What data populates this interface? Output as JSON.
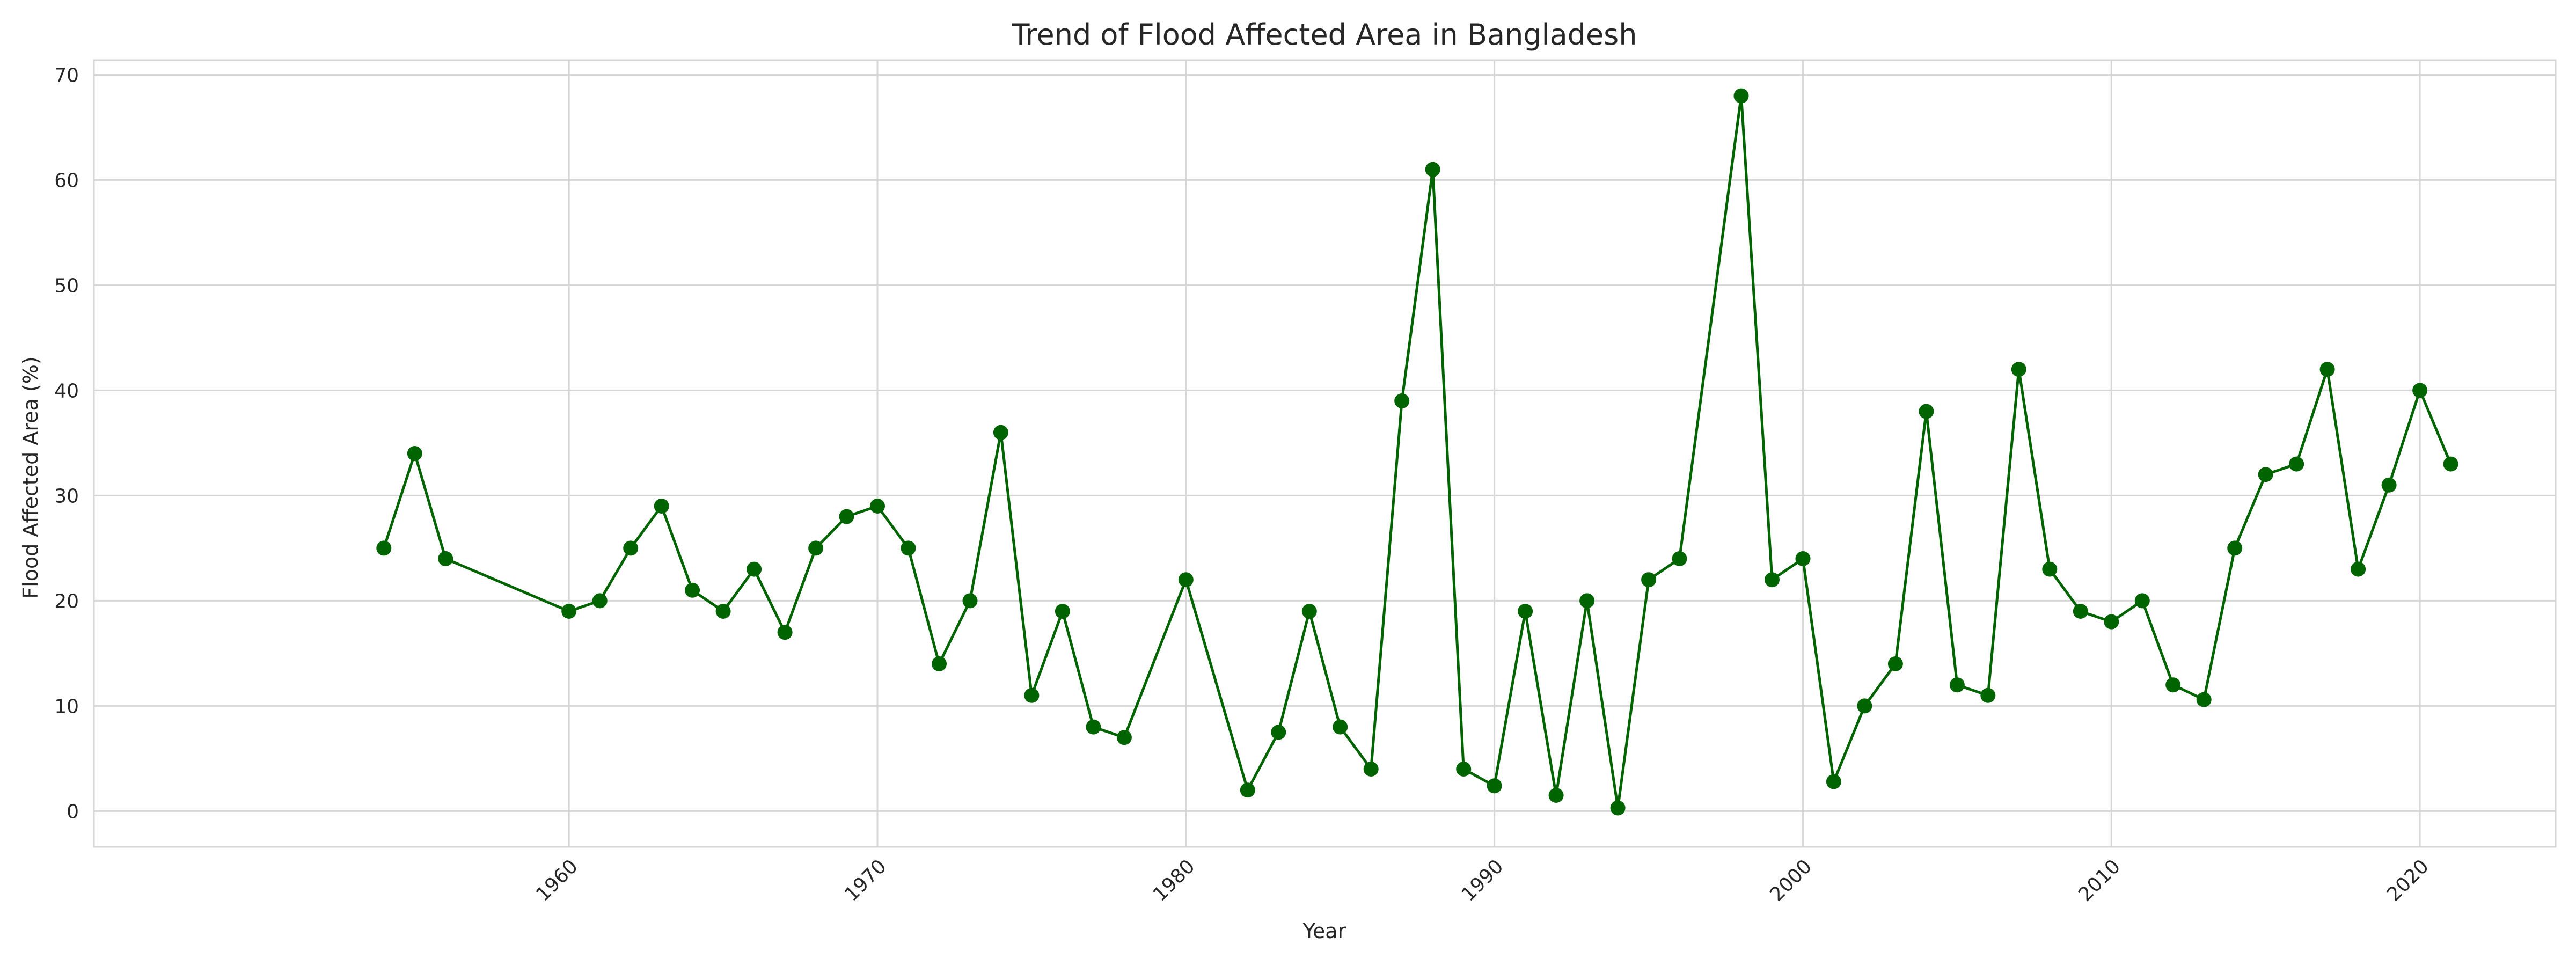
{
  "chart_data": {
    "type": "line",
    "title": "Trend of Flood Affected Area in Bangladesh",
    "xlabel": "Year",
    "ylabel": "Flood Affected Area (%)",
    "xlim": [
      1944.6,
      2024.4
    ],
    "ylim": [
      -3.4,
      71.4
    ],
    "xticks": [
      1960,
      1970,
      1980,
      1990,
      2000,
      2010,
      2020
    ],
    "yticks": [
      0,
      10,
      20,
      30,
      40,
      50,
      60,
      70
    ],
    "x_tick_rotation": 45,
    "grid": true,
    "legend": false,
    "color": "#006400",
    "marker": "circle",
    "series": [
      {
        "x": [
          1954,
          1955,
          1956,
          1960,
          1961,
          1962,
          1963,
          1964,
          1965,
          1966,
          1967,
          1968,
          1969,
          1970,
          1971,
          1972,
          1973,
          1974,
          1975,
          1976,
          1977,
          1978,
          1980,
          1982,
          1983,
          1984,
          1985,
          1986,
          1987,
          1988,
          1989,
          1990,
          1991,
          1992,
          1993,
          1994,
          1995,
          1996,
          1998,
          1999,
          2000,
          2001,
          2002,
          2003,
          2004,
          2005,
          2006,
          2007,
          2008,
          2009,
          2010,
          2011,
          2012,
          2013,
          2014,
          2015,
          2016,
          2017,
          2018,
          2019,
          2020,
          2021
        ],
        "values": [
          25,
          34,
          24,
          19,
          20,
          25,
          29,
          21,
          19,
          23,
          17,
          25,
          28,
          29,
          25,
          14,
          20,
          36,
          11,
          19,
          8,
          7,
          22,
          2,
          7.5,
          19,
          8,
          4,
          39,
          61,
          4,
          2.4,
          19,
          1.5,
          20,
          0.3,
          22,
          24,
          68,
          22,
          24,
          2.8,
          10,
          14,
          38,
          12,
          11,
          42,
          23,
          19,
          18,
          20,
          12,
          10.6,
          25,
          32,
          33,
          42,
          23,
          31,
          40,
          33
        ]
      }
    ]
  }
}
